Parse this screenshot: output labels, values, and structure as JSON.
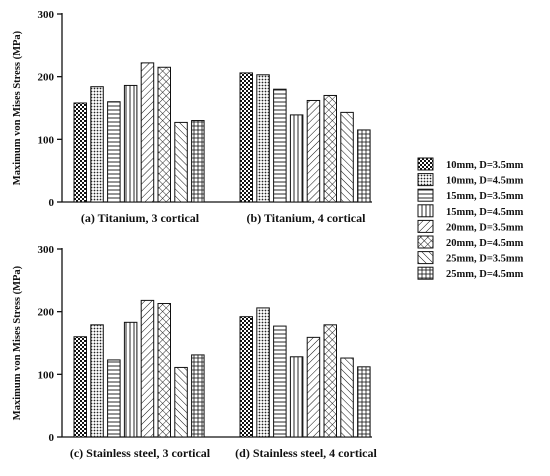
{
  "chart_data": {
    "type": "bar",
    "series_names": [
      "10mm, D=3.5mm",
      "10mm, D=4.5mm",
      "15mm, D=3.5mm",
      "15mm, D=4.5mm",
      "20mm, D=3.5mm",
      "20mm, D=4.5mm",
      "25mm, D=3.5mm",
      "25mm, D=4.5mm"
    ],
    "legend_position": "right",
    "rows": [
      {
        "ylabel": "Maximum von Mises Stress (MPa)",
        "ylim": [
          0,
          300
        ],
        "yticks": [
          "0",
          "100",
          "200",
          "300"
        ],
        "panels": [
          {
            "title": "(a) Titanium, 3 cortical",
            "values": [
              158,
              184,
              160,
              186,
              222,
              215,
              127,
              130
            ]
          },
          {
            "title": "(b) Titanium, 4 cortical",
            "values": [
              206,
              203,
              180,
              139,
              162,
              170,
              143,
              115
            ]
          }
        ]
      },
      {
        "ylabel": "Maximum von Mises Stress (MPa)",
        "ylim": [
          0,
          300
        ],
        "yticks": [
          "0",
          "100",
          "200",
          "300"
        ],
        "panels": [
          {
            "title": "(c) Stainless steel, 3 cortical",
            "values": [
              160,
              179,
              123,
              183,
              218,
              213,
              111,
              131
            ]
          },
          {
            "title": "(d) Stainless steel, 4 cortical",
            "values": [
              192,
              206,
              177,
              128,
              159,
              179,
              126,
              112
            ]
          }
        ]
      }
    ]
  }
}
